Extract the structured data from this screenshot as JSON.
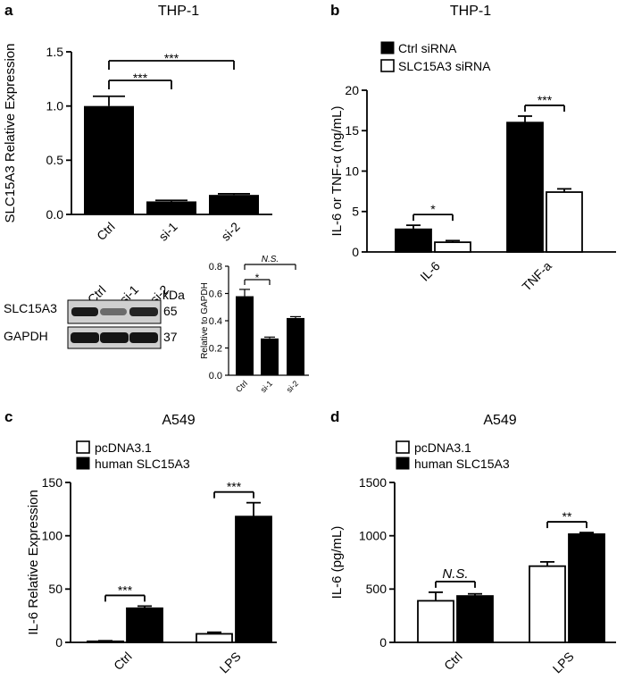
{
  "panels": {
    "a": {
      "letter": "a",
      "title": "THP-1"
    },
    "b": {
      "letter": "b",
      "title": "THP-1"
    },
    "c": {
      "letter": "c",
      "title": "A549"
    },
    "d": {
      "letter": "d",
      "title": "A549"
    }
  },
  "blot": {
    "lanes": [
      "Ctrl",
      "si-1",
      "si-2"
    ],
    "unit": "kDa",
    "rows": [
      {
        "label": "SLC15A3",
        "size": "65",
        "intensity": [
          1.0,
          0.55,
          0.95
        ]
      },
      {
        "label": "GAPDH",
        "size": "37",
        "intensity": [
          1.0,
          1.0,
          1.0
        ]
      }
    ]
  },
  "colors": {
    "filled": "#000000",
    "open": "#ffffff"
  },
  "chart_data": [
    {
      "id": "a",
      "type": "bar",
      "categories": [
        "Ctrl",
        "si-1",
        "si-2"
      ],
      "values": [
        1.0,
        0.12,
        0.18
      ],
      "errors": [
        0.09,
        0.01,
        0.01
      ],
      "ylabel": "SLC15A3 Relative Expression",
      "ylim": [
        0,
        1.5
      ],
      "yticks": [
        "0.0",
        "0.5",
        "1.0",
        "1.5"
      ],
      "significance": [
        {
          "from": 0,
          "to": 1,
          "label": "***"
        },
        {
          "from": 0,
          "to": 2,
          "label": "***"
        }
      ]
    },
    {
      "id": "a-inset",
      "type": "bar",
      "categories": [
        "Ctrl",
        "si-1",
        "si-2"
      ],
      "values": [
        0.58,
        0.27,
        0.42
      ],
      "errors": [
        0.05,
        0.01,
        0.01
      ],
      "ylabel": "Relative to GAPDH",
      "ylim": [
        0,
        0.8
      ],
      "yticks": [
        "0.0",
        "0.2",
        "0.4",
        "0.6",
        "0.8"
      ],
      "significance": [
        {
          "from": 0,
          "to": 1,
          "label": "*"
        },
        {
          "from": 0,
          "to": 2,
          "label": "N.S."
        }
      ]
    },
    {
      "id": "b",
      "type": "bar",
      "categories": [
        "IL-6",
        "TNF-a"
      ],
      "series": [
        {
          "name": "Ctrl siRNA",
          "values": [
            2.8,
            16.0
          ],
          "errors": [
            0.5,
            0.8
          ]
        },
        {
          "name": "SLC15A3 siRNA",
          "values": [
            1.2,
            7.4
          ],
          "errors": [
            0.2,
            0.4
          ]
        }
      ],
      "ylabel": "IL-6 or TNF-α (ng/mL)",
      "ylim": [
        0,
        20
      ],
      "yticks": [
        "0",
        "5",
        "10",
        "15",
        "20"
      ],
      "legend": "top-left",
      "significance": [
        {
          "category": 0,
          "label": "*"
        },
        {
          "category": 1,
          "label": "***"
        }
      ]
    },
    {
      "id": "c",
      "type": "bar",
      "categories": [
        "Ctrl",
        "LPS"
      ],
      "series": [
        {
          "name": "pcDNA3.1",
          "values": [
            1,
            8
          ],
          "errors": [
            0.5,
            1.5
          ]
        },
        {
          "name": "human SLC15A3",
          "values": [
            32,
            118
          ],
          "errors": [
            2,
            13
          ]
        }
      ],
      "ylabel": "IL-6 Relative Expression",
      "ylim": [
        0,
        150
      ],
      "yticks": [
        "0",
        "50",
        "100",
        "150"
      ],
      "legend": "top-left",
      "significance": [
        {
          "category": 0,
          "label": "***"
        },
        {
          "category": 1,
          "label": "***"
        }
      ]
    },
    {
      "id": "d",
      "type": "bar",
      "categories": [
        "Ctrl",
        "LPS"
      ],
      "series": [
        {
          "name": "pcDNA3.1",
          "values": [
            390,
            715
          ],
          "errors": [
            80,
            40
          ]
        },
        {
          "name": "human SLC15A3",
          "values": [
            435,
            1015
          ],
          "errors": [
            20,
            15
          ]
        }
      ],
      "ylabel": "IL-6 (pg/mL)",
      "ylim": [
        0,
        1500
      ],
      "yticks": [
        "0",
        "500",
        "1000",
        "1500"
      ],
      "legend": "top-left",
      "significance": [
        {
          "category": 0,
          "label": "N.S."
        },
        {
          "category": 1,
          "label": "**"
        }
      ]
    }
  ]
}
